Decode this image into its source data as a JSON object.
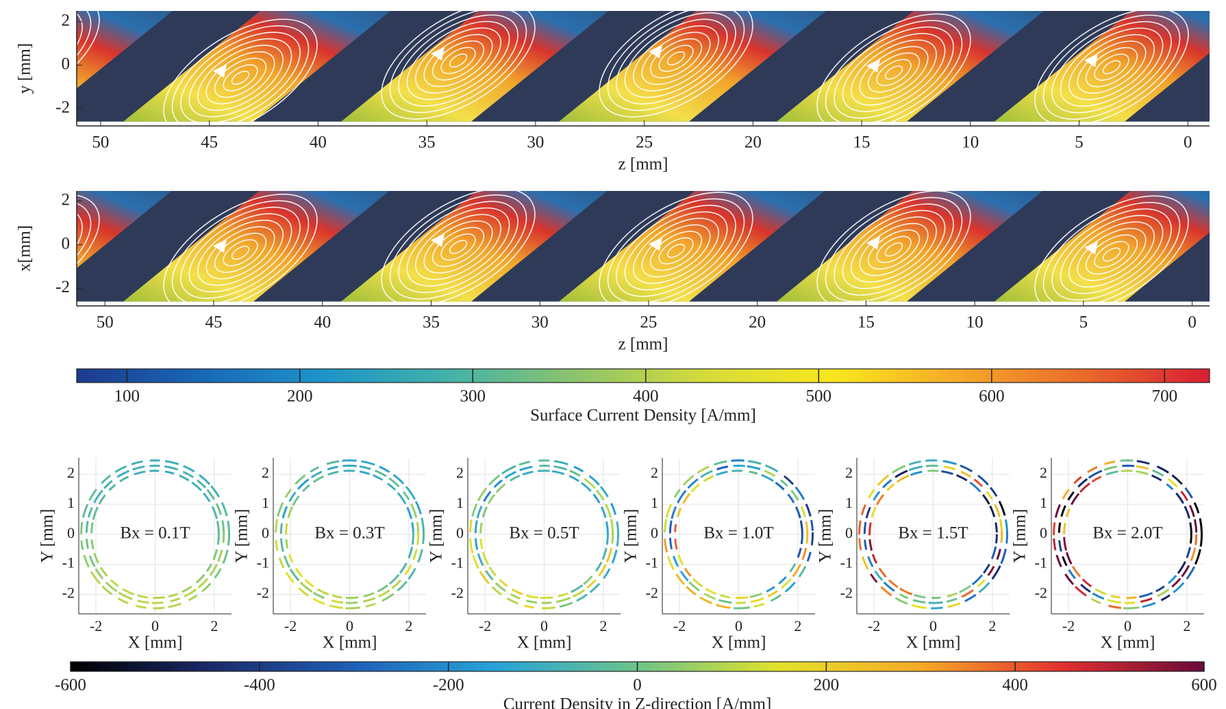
{
  "chart_data": [
    {
      "type": "surface",
      "xlabel": "z [mm]",
      "ylabel": "y [mm]",
      "xlim": [
        51.1,
        -1
      ],
      "ylim": [
        -2.8,
        2.5
      ],
      "xticks": [
        50,
        45,
        40,
        35,
        30,
        25,
        20,
        15,
        10,
        5,
        0
      ],
      "yticks": [
        -2,
        0,
        2
      ]
    },
    {
      "type": "surface",
      "xlabel": "z [mm]",
      "ylabel": "x[mm]",
      "xlim": [
        51.3,
        -0.8
      ],
      "ylim": [
        -2.8,
        2.46
      ],
      "xticks": [
        50,
        45,
        40,
        35,
        30,
        25,
        20,
        15,
        10,
        5,
        0
      ],
      "yticks": [
        -2,
        0,
        2
      ]
    },
    {
      "type": "colorbar",
      "label": "Surface Current Density [A/mm]",
      "xlim": [
        71,
        726
      ],
      "xticks": [
        100,
        200,
        300,
        400,
        500,
        600,
        700
      ],
      "colormap": [
        "#1c3a8c",
        "#1868b8",
        "#1e95c9",
        "#45b3a6",
        "#8fc46a",
        "#d6db3a",
        "#f8e71c",
        "#f6a928",
        "#ea6a2a",
        "#d81e34"
      ]
    },
    {
      "type": "ring",
      "annotation": "Bx = 0.1T",
      "xlabel": "X [mm]",
      "ylabel": "Y [mm]",
      "xlim": [
        -2.58,
        2.58
      ],
      "ylim": [
        -2.65,
        2.55
      ],
      "xticks": [
        -2,
        0,
        2
      ],
      "yticks": [
        -2,
        -1,
        0,
        1,
        2
      ],
      "radii": [
        2.15,
        2.32,
        2.5
      ],
      "grid": true
    },
    {
      "type": "ring",
      "annotation": "Bx = 0.3T",
      "xlabel": "X [mm]",
      "ylabel": "Y [mm]",
      "xlim": [
        -2.58,
        2.58
      ],
      "ylim": [
        -2.65,
        2.55
      ],
      "xticks": [
        -2,
        0,
        2
      ],
      "yticks": [
        -2,
        -1,
        0,
        1,
        2
      ],
      "radii": [
        2.15,
        2.32,
        2.5
      ],
      "grid": true
    },
    {
      "type": "ring",
      "annotation": "Bx = 0.5T",
      "xlabel": "X [mm]",
      "ylabel": "Y [mm]",
      "xlim": [
        -2.58,
        2.58
      ],
      "ylim": [
        -2.65,
        2.55
      ],
      "xticks": [
        -2,
        0,
        2
      ],
      "yticks": [
        -2,
        -1,
        0,
        1,
        2
      ],
      "radii": [
        2.15,
        2.32,
        2.5
      ],
      "grid": true
    },
    {
      "type": "ring",
      "annotation": "Bx = 1.0T",
      "xlabel": "X [mm]",
      "ylabel": "Y [mm]",
      "xlim": [
        -2.58,
        2.58
      ],
      "ylim": [
        -2.65,
        2.55
      ],
      "xticks": [
        -2,
        0,
        2
      ],
      "yticks": [
        -2,
        -1,
        0,
        1,
        2
      ],
      "radii": [
        2.15,
        2.32,
        2.5
      ],
      "grid": true
    },
    {
      "type": "ring",
      "annotation": "Bx = 1.5T",
      "xlabel": "X [mm]",
      "ylabel": "Y [mm]",
      "xlim": [
        -2.58,
        2.58
      ],
      "ylim": [
        -2.65,
        2.55
      ],
      "xticks": [
        -2,
        0,
        2
      ],
      "yticks": [
        -2,
        -1,
        0,
        1,
        2
      ],
      "radii": [
        2.15,
        2.32,
        2.5
      ],
      "grid": true
    },
    {
      "type": "ring",
      "annotation": "Bx = 2.0T",
      "xlabel": "X [mm]",
      "ylabel": "Y [mm]",
      "xlim": [
        -2.58,
        2.58
      ],
      "ylim": [
        -2.65,
        2.55
      ],
      "xticks": [
        -2,
        0,
        2
      ],
      "yticks": [
        -2,
        -1,
        0,
        1,
        2
      ],
      "radii": [
        2.15,
        2.32,
        2.5
      ],
      "grid": true
    },
    {
      "type": "colorbar",
      "label": "Current Density in Z-direction [A/mm]",
      "xlim": [
        -600,
        600
      ],
      "xticks": [
        -600,
        -400,
        -200,
        0,
        200,
        400,
        600
      ],
      "colormap": [
        "#000000",
        "#1b2a6b",
        "#1f5fb8",
        "#27a3d8",
        "#6cc38a",
        "#e2e22a",
        "#f6a928",
        "#e0302e",
        "#6a0a3a"
      ]
    }
  ]
}
